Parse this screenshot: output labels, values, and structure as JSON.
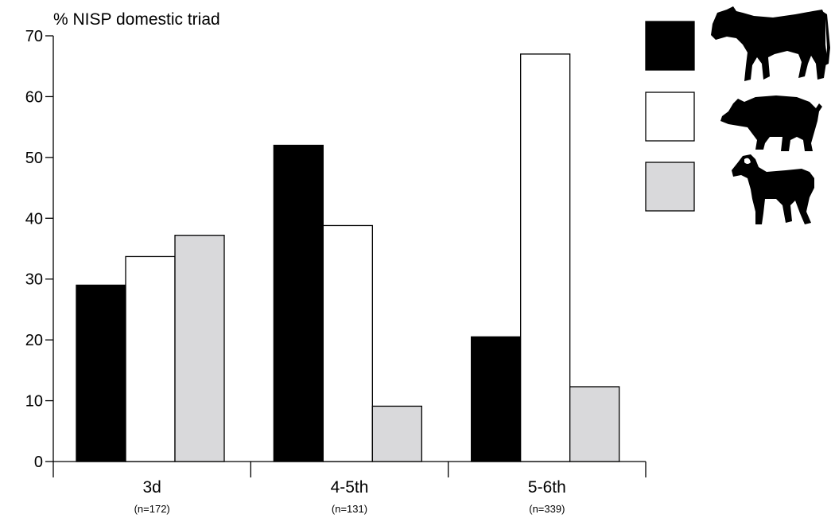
{
  "chart_data": {
    "type": "bar",
    "ylabel": "% NISP domestic triad",
    "ylim": [
      0,
      70
    ],
    "yticks": [
      0,
      10,
      20,
      30,
      40,
      50,
      60,
      70
    ],
    "categories": [
      "3d",
      "4-5th",
      "5-6th"
    ],
    "category_counts": [
      "(n=172)",
      "(n=131)",
      "(n=339)"
    ],
    "series": [
      {
        "icon": "cattle-silhouette-icon",
        "color": "#000000",
        "values": [
          29,
          52,
          20.5
        ]
      },
      {
        "icon": "pig-silhouette-icon",
        "color": "#ffffff",
        "values": [
          33.7,
          38.8,
          67
        ]
      },
      {
        "icon": "sheep-goat-silhouette-icon",
        "color": "#d9d9db",
        "values": [
          37.2,
          9.1,
          12.3
        ]
      }
    ],
    "legend": {
      "position": "top-right"
    },
    "grid": false
  }
}
